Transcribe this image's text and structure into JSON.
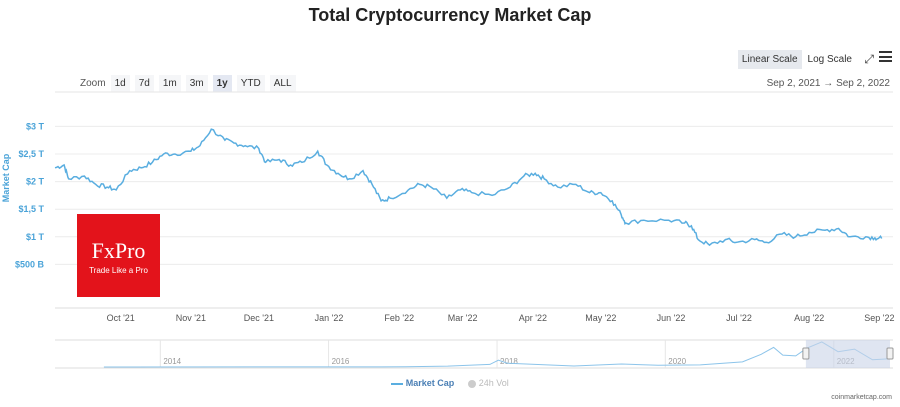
{
  "title": "Total Cryptocurrency Market Cap",
  "scale": {
    "linear": "Linear Scale",
    "log": "Log Scale",
    "active": "linear"
  },
  "zoom": {
    "label": "Zoom",
    "options": [
      "1d",
      "7d",
      "1m",
      "3m",
      "1y",
      "YTD",
      "ALL"
    ],
    "active": "1y"
  },
  "range": {
    "from": "Sep 2, 2021",
    "arrow": "→",
    "to": "Sep 2, 2022"
  },
  "watermark": {
    "brand": "FxPro",
    "tagline": "Trade Like a Pro"
  },
  "legend": {
    "market_cap": "Market Cap",
    "vol": "24h Vol"
  },
  "credit": "coinmarketcap.com",
  "colors": {
    "line": "#5aaee0",
    "axis_text": "#4aa3d8",
    "nav_selection": "#c9d3e8"
  },
  "chart_data": {
    "type": "line",
    "title": "Total Cryptocurrency Market Cap",
    "ylabel": "Market Cap",
    "ylim": [
      0,
      3.3
    ],
    "yticks": [
      {
        "v": 0.5,
        "label": "$500 B"
      },
      {
        "v": 1,
        "label": "$1 T"
      },
      {
        "v": 1.5,
        "label": "$1,5 T"
      },
      {
        "v": 2,
        "label": "$2 T"
      },
      {
        "v": 2.5,
        "label": "$2,5 T"
      },
      {
        "v": 3,
        "label": "$3 T"
      }
    ],
    "xlim": [
      "2021-09-02",
      "2022-09-07"
    ],
    "xticks": [
      {
        "d": "2021-10-01",
        "label": "Oct '21"
      },
      {
        "d": "2021-11-01",
        "label": "Nov '21"
      },
      {
        "d": "2021-12-01",
        "label": "Dec '21"
      },
      {
        "d": "2022-01-01",
        "label": "Jan '22"
      },
      {
        "d": "2022-02-01",
        "label": "Feb '22"
      },
      {
        "d": "2022-03-01",
        "label": "Mar '22"
      },
      {
        "d": "2022-04-01",
        "label": "Apr '22"
      },
      {
        "d": "2022-05-01",
        "label": "May '22"
      },
      {
        "d": "2022-06-01",
        "label": "Jun '22"
      },
      {
        "d": "2022-07-01",
        "label": "Jul '22"
      },
      {
        "d": "2022-08-01",
        "label": "Aug '22"
      },
      {
        "d": "2022-09-01",
        "label": "Sep '22"
      }
    ],
    "series": [
      {
        "name": "Market Cap",
        "unit": "T USD",
        "points": [
          [
            "2021-09-02",
            2.25
          ],
          [
            "2021-09-06",
            2.3
          ],
          [
            "2021-09-08",
            2.05
          ],
          [
            "2021-09-15",
            2.1
          ],
          [
            "2021-09-20",
            1.95
          ],
          [
            "2021-09-25",
            1.9
          ],
          [
            "2021-09-29",
            1.85
          ],
          [
            "2021-10-05",
            2.2
          ],
          [
            "2021-10-10",
            2.25
          ],
          [
            "2021-10-15",
            2.35
          ],
          [
            "2021-10-20",
            2.5
          ],
          [
            "2021-10-25",
            2.5
          ],
          [
            "2021-11-01",
            2.55
          ],
          [
            "2021-11-05",
            2.65
          ],
          [
            "2021-11-10",
            2.95
          ],
          [
            "2021-11-16",
            2.75
          ],
          [
            "2021-11-20",
            2.7
          ],
          [
            "2021-11-25",
            2.65
          ],
          [
            "2021-12-01",
            2.6
          ],
          [
            "2021-12-04",
            2.35
          ],
          [
            "2021-12-10",
            2.4
          ],
          [
            "2021-12-15",
            2.3
          ],
          [
            "2021-12-20",
            2.35
          ],
          [
            "2021-12-27",
            2.55
          ],
          [
            "2021-12-31",
            2.3
          ],
          [
            "2022-01-05",
            2.15
          ],
          [
            "2022-01-10",
            2.05
          ],
          [
            "2022-01-16",
            2.2
          ],
          [
            "2022-01-20",
            1.95
          ],
          [
            "2022-01-24",
            1.65
          ],
          [
            "2022-01-28",
            1.7
          ],
          [
            "2022-02-05",
            1.85
          ],
          [
            "2022-02-10",
            1.95
          ],
          [
            "2022-02-15",
            1.9
          ],
          [
            "2022-02-22",
            1.7
          ],
          [
            "2022-02-28",
            1.85
          ],
          [
            "2022-03-05",
            1.8
          ],
          [
            "2022-03-14",
            1.75
          ],
          [
            "2022-03-22",
            1.9
          ],
          [
            "2022-03-28",
            2.1
          ],
          [
            "2022-04-02",
            2.15
          ],
          [
            "2022-04-06",
            2.05
          ],
          [
            "2022-04-12",
            1.9
          ],
          [
            "2022-04-20",
            1.95
          ],
          [
            "2022-04-26",
            1.8
          ],
          [
            "2022-05-01",
            1.8
          ],
          [
            "2022-05-06",
            1.65
          ],
          [
            "2022-05-10",
            1.4
          ],
          [
            "2022-05-12",
            1.25
          ],
          [
            "2022-05-20",
            1.3
          ],
          [
            "2022-05-31",
            1.3
          ],
          [
            "2022-06-07",
            1.25
          ],
          [
            "2022-06-10",
            1.2
          ],
          [
            "2022-06-13",
            0.95
          ],
          [
            "2022-06-18",
            0.85
          ],
          [
            "2022-06-25",
            0.95
          ],
          [
            "2022-06-30",
            0.9
          ],
          [
            "2022-07-08",
            0.95
          ],
          [
            "2022-07-13",
            0.9
          ],
          [
            "2022-07-20",
            1.05
          ],
          [
            "2022-07-26",
            1.0
          ],
          [
            "2022-08-01",
            1.08
          ],
          [
            "2022-08-08",
            1.12
          ],
          [
            "2022-08-14",
            1.15
          ],
          [
            "2022-08-19",
            1.0
          ],
          [
            "2022-08-26",
            1.0
          ],
          [
            "2022-08-30",
            0.98
          ],
          [
            "2022-09-02",
            0.97
          ]
        ]
      }
    ]
  },
  "navigator": {
    "years": [
      "2014",
      "2016",
      "2018",
      "2020",
      "2022"
    ],
    "points": [
      [
        "2013-05-01",
        0.002
      ],
      [
        "2016-12-01",
        0.02
      ],
      [
        "2017-06-01",
        0.1
      ],
      [
        "2017-12-01",
        0.3
      ],
      [
        "2018-01-07",
        0.8
      ],
      [
        "2018-02-15",
        0.45
      ],
      [
        "2018-12-01",
        0.12
      ],
      [
        "2019-06-25",
        0.35
      ],
      [
        "2019-12-01",
        0.2
      ],
      [
        "2020-06-01",
        0.25
      ],
      [
        "2020-12-01",
        0.6
      ],
      [
        "2021-02-20",
        1.5
      ],
      [
        "2021-04-15",
        2.3
      ],
      [
        "2021-05-25",
        1.4
      ],
      [
        "2021-07-20",
        1.3
      ],
      [
        "2021-09-05",
        2.2
      ],
      [
        "2021-11-10",
        2.95
      ],
      [
        "2022-01-20",
        1.8
      ],
      [
        "2022-04-01",
        2.1
      ],
      [
        "2022-06-18",
        0.85
      ],
      [
        "2022-09-02",
        0.97
      ]
    ],
    "selection": [
      "2021-09-02",
      "2022-09-02"
    ]
  }
}
